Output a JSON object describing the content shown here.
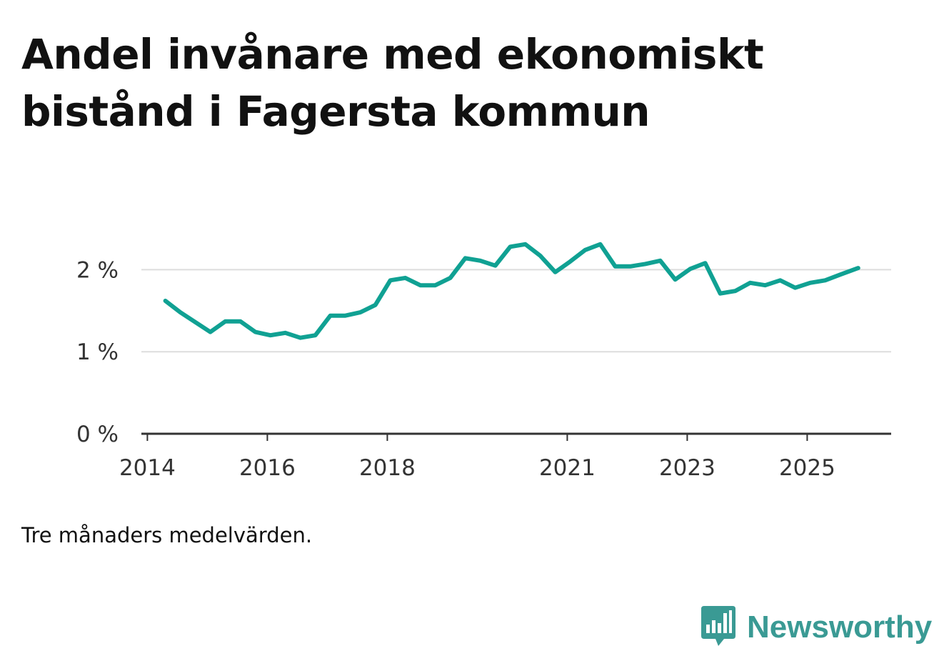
{
  "title": "Andel invånare med ekonomiskt bistånd i Fagersta kommun",
  "caption": "Tre månaders medelvärden.",
  "brand": {
    "name": "Newsworthy",
    "icon": "newsworthy-logo-icon",
    "color": "#3a9a94"
  },
  "colors": {
    "line": "#10a193",
    "grid": "#dddddd",
    "axis": "#333333"
  },
  "chart_data": {
    "type": "line",
    "title": "Andel invånare med ekonomiskt bistånd i Fagersta kommun",
    "xlabel": "",
    "ylabel": "",
    "unit": "%",
    "xlim": [
      2013.9,
      2026.4
    ],
    "ylim": [
      0,
      2.5
    ],
    "y_ticks": [
      0,
      1,
      2
    ],
    "y_tick_labels": [
      "0 %",
      "1 %",
      "2 %"
    ],
    "x_ticks": [
      2014,
      2016,
      2018,
      2021,
      2023,
      2025
    ],
    "x_tick_labels": [
      "2014",
      "2016",
      "2018",
      "2021",
      "2023",
      "2025"
    ],
    "grid": true,
    "series": [
      {
        "name": "Andel invånare med ekonomiskt bistånd",
        "x": [
          2014.3,
          2014.55,
          2014.8,
          2015.05,
          2015.3,
          2015.55,
          2015.8,
          2016.05,
          2016.3,
          2016.55,
          2016.8,
          2017.05,
          2017.3,
          2017.55,
          2017.8,
          2018.05,
          2018.3,
          2018.55,
          2018.8,
          2019.05,
          2019.3,
          2019.55,
          2019.8,
          2020.05,
          2020.3,
          2020.55,
          2020.8,
          2021.05,
          2021.3,
          2021.55,
          2021.8,
          2022.05,
          2022.3,
          2022.55,
          2022.8,
          2023.05,
          2023.3,
          2023.55,
          2023.8,
          2024.05,
          2024.3,
          2024.55,
          2024.8,
          2025.05,
          2025.3,
          2025.55,
          2025.85
        ],
        "values": [
          1.62,
          1.48,
          1.36,
          1.24,
          1.37,
          1.37,
          1.24,
          1.2,
          1.23,
          1.17,
          1.2,
          1.44,
          1.44,
          1.48,
          1.57,
          1.87,
          1.9,
          1.81,
          1.81,
          1.9,
          2.14,
          2.11,
          2.05,
          2.28,
          2.31,
          2.17,
          1.97,
          2.1,
          2.24,
          2.31,
          2.04,
          2.04,
          2.07,
          2.11,
          1.88,
          2.01,
          2.08,
          1.71,
          1.74,
          1.84,
          1.81,
          1.87,
          1.78,
          1.84,
          1.87,
          1.94,
          2.02
        ]
      }
    ]
  }
}
